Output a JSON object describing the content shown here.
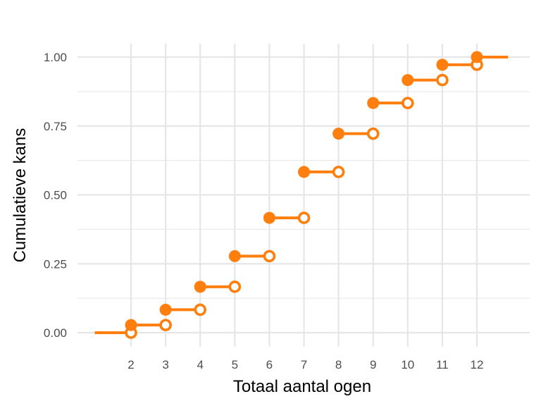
{
  "chart_data": {
    "type": "step",
    "title": "",
    "xlabel": "Totaal aantal ogen",
    "ylabel": "Cumulatieve kans",
    "x_ticks": [
      2,
      3,
      4,
      5,
      6,
      7,
      8,
      9,
      10,
      11,
      12
    ],
    "y_ticks": [
      0.0,
      0.25,
      0.5,
      0.75,
      1.0
    ],
    "y_tick_labels": [
      "0.00",
      "0.25",
      "0.50",
      "0.75",
      "1.00"
    ],
    "xlim": [
      0.95,
      12.9
    ],
    "ylim": [
      -0.05,
      1.05
    ],
    "grid": true,
    "legend": "none",
    "color": "#ff7f0e",
    "x": [
      2,
      3,
      4,
      5,
      6,
      7,
      8,
      9,
      10,
      11,
      12
    ],
    "y": [
      0.0278,
      0.0833,
      0.1667,
      0.2778,
      0.4167,
      0.5833,
      0.7222,
      0.8333,
      0.9167,
      0.9722,
      1.0
    ],
    "y_left_start": 0.0,
    "x_right_end": 12.9
  }
}
